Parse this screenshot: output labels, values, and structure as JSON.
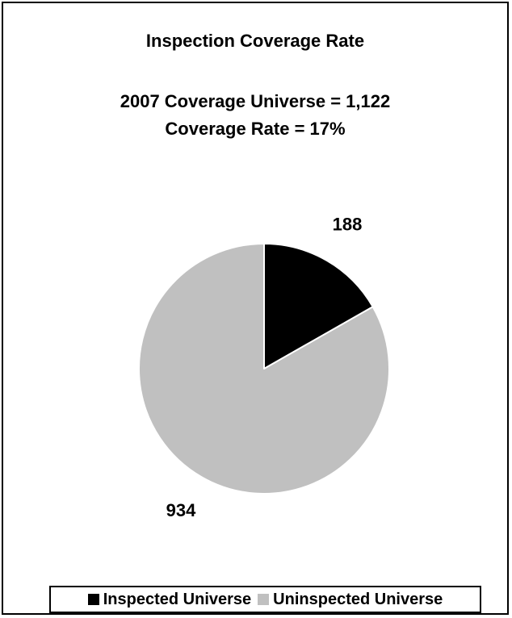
{
  "chart_data": {
    "type": "pie",
    "title": "Inspection Coverage Rate",
    "subtitle_lines": [
      "2007 Coverage Universe = 1,122",
      "Coverage Rate = 17%"
    ],
    "series": [
      {
        "name": "Inspected Universe",
        "value": 188,
        "label": "188",
        "color": "#000000"
      },
      {
        "name": "Uninspected Universe",
        "value": 934,
        "label": "934",
        "color": "#c0c0c0"
      }
    ],
    "start_angle_deg": 0,
    "direction": "clockwise",
    "slice_border_color": "#ffffff",
    "legend_position": "bottom"
  }
}
